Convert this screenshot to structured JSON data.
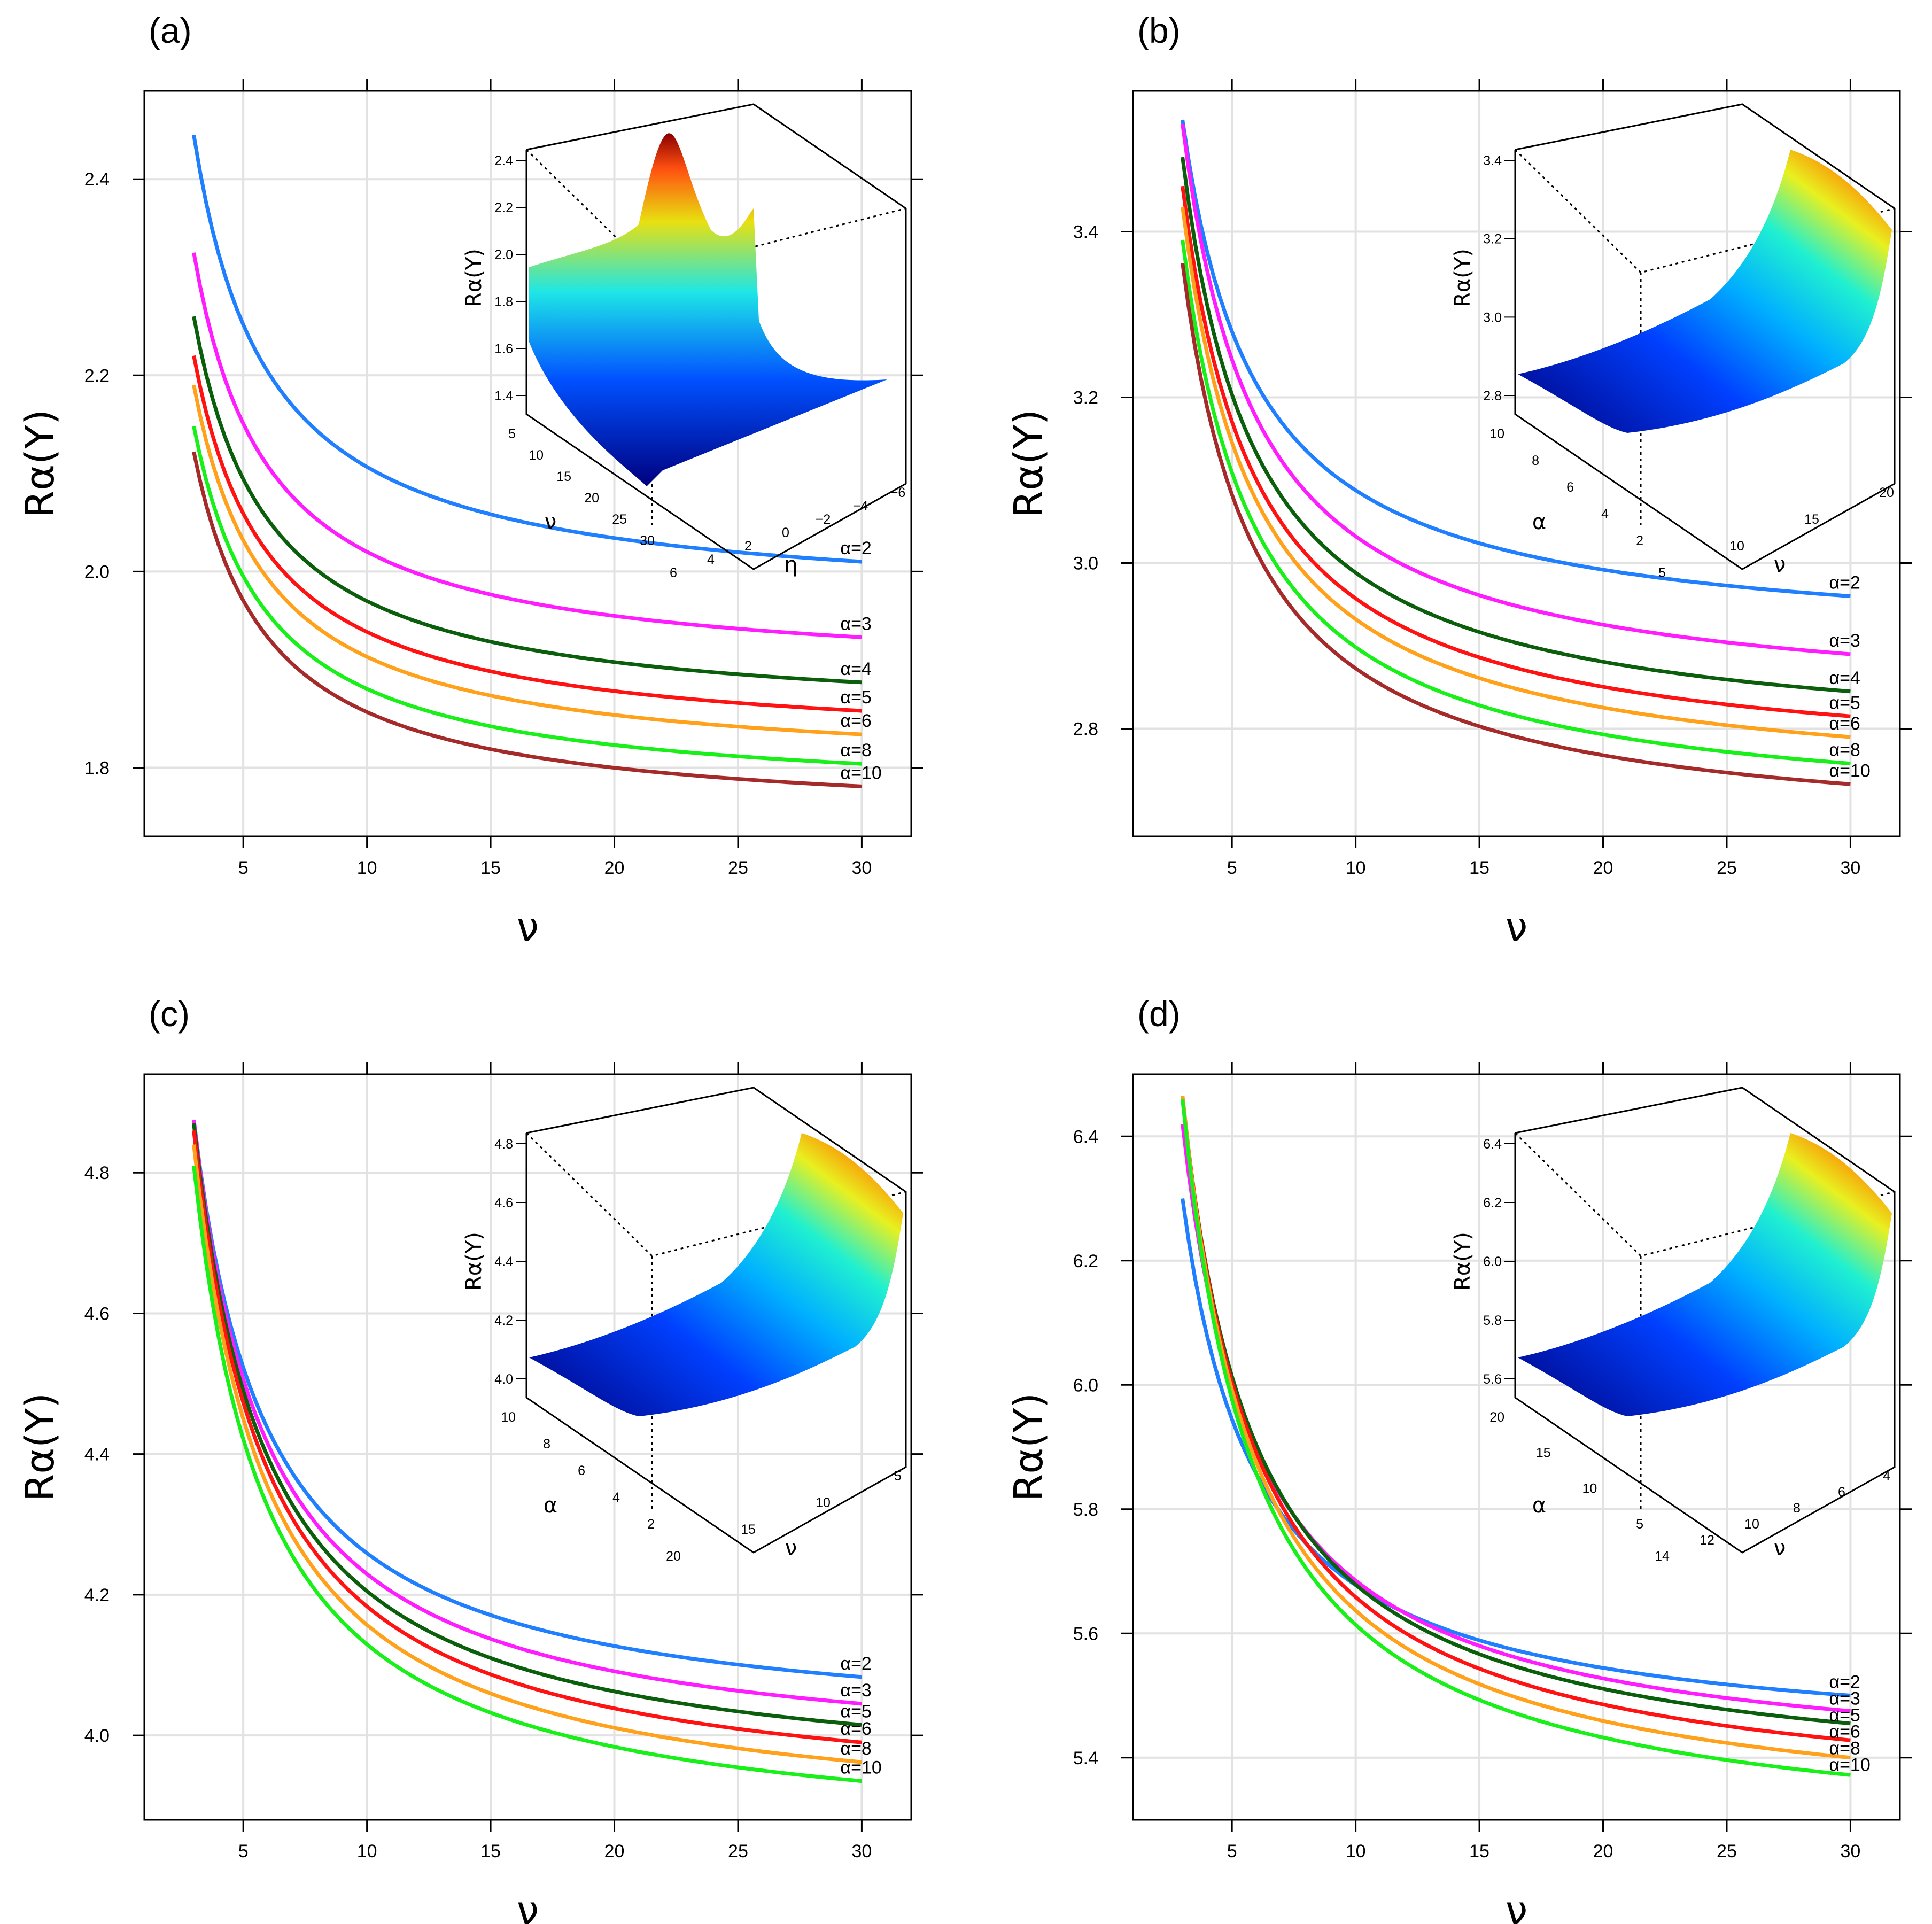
{
  "chart_data": [
    {
      "panel": "(a)",
      "type": "line",
      "xlabel": "ν",
      "ylabel": "Rα(Y)",
      "xlim": [
        1,
        32
      ],
      "ylim": [
        1.73,
        2.49
      ],
      "xticks": [
        5,
        10,
        15,
        20,
        25,
        30
      ],
      "yticks": [
        1.8,
        2.0,
        2.2,
        2.4
      ],
      "ytick_labels": [
        "1.8",
        "2.0",
        "2.2",
        "2.4"
      ],
      "series": [
        {
          "name": "α=2",
          "color": "#1f7fff",
          "start": 2.445,
          "end": 2.01
        },
        {
          "name": "α=3",
          "color": "#ff1cff",
          "start": 2.325,
          "end": 1.933
        },
        {
          "name": "α=4",
          "color": "#0b5e0b",
          "start": 2.26,
          "end": 1.887
        },
        {
          "name": "α=5",
          "color": "#ff1212",
          "start": 2.22,
          "end": 1.858
        },
        {
          "name": "α=6",
          "color": "#ffa11a",
          "start": 2.19,
          "end": 1.834
        },
        {
          "name": "α=8",
          "color": "#19f019",
          "start": 2.148,
          "end": 1.804
        },
        {
          "name": "α=10",
          "color": "#a52a2a",
          "start": 2.122,
          "end": 1.781
        }
      ],
      "inset": {
        "zlabel": "Rα(Y)",
        "ylabel": "η",
        "xlabel": "ν",
        "zticks": [
          "2.4",
          "2.2",
          "2.0",
          "1.8",
          "1.6",
          "1.4"
        ],
        "xticks": [
          "5",
          "10",
          "15",
          "20",
          "25",
          "30"
        ],
        "yticks": [
          "6",
          "4",
          "2",
          "0",
          "−2",
          "−4",
          "−6"
        ]
      }
    },
    {
      "panel": "(b)",
      "type": "line",
      "xlabel": "ν",
      "ylabel": "Rα(Y)",
      "xlim": [
        1,
        32
      ],
      "ylim": [
        2.67,
        3.57
      ],
      "xticks": [
        5,
        10,
        15,
        20,
        25,
        30
      ],
      "yticks": [
        2.8,
        3.0,
        3.2,
        3.4
      ],
      "ytick_labels": [
        "2.8",
        "3.0",
        "3.2",
        "3.4"
      ],
      "series": [
        {
          "name": "α=2",
          "color": "#1f7fff",
          "start": 3.535,
          "end": 2.96
        },
        {
          "name": "α=3",
          "color": "#ff1cff",
          "start": 3.53,
          "end": 2.89
        },
        {
          "name": "α=4",
          "color": "#0b5e0b",
          "start": 3.49,
          "end": 2.845
        },
        {
          "name": "α=5",
          "color": "#ff1212",
          "start": 3.455,
          "end": 2.815
        },
        {
          "name": "α=6",
          "color": "#ffa11a",
          "start": 3.43,
          "end": 2.79
        },
        {
          "name": "α=8",
          "color": "#19f019",
          "start": 3.39,
          "end": 2.758
        },
        {
          "name": "α=10",
          "color": "#a52a2a",
          "start": 3.362,
          "end": 2.733
        }
      ],
      "inset": {
        "zlabel": "Rα(Y)",
        "xlabel": "α",
        "ylabel": "ν",
        "zticks": [
          "3.4",
          "3.2",
          "3.0",
          "2.8"
        ],
        "xticks": [
          "10",
          "8",
          "6",
          "4",
          "2"
        ],
        "yticks": [
          "5",
          "10",
          "15",
          "20"
        ]
      }
    },
    {
      "panel": "(c)",
      "type": "line",
      "xlabel": "ν",
      "ylabel": "Rα(Y)",
      "xlim": [
        1,
        32
      ],
      "ylim": [
        3.88,
        4.94
      ],
      "xticks": [
        5,
        10,
        15,
        20,
        25,
        30
      ],
      "yticks": [
        4.0,
        4.2,
        4.4,
        4.6,
        4.8
      ],
      "ytick_labels": [
        "4.0",
        "4.2",
        "4.4",
        "4.6",
        "4.8"
      ],
      "series": [
        {
          "name": "α=2",
          "color": "#1f7fff",
          "start": 4.875,
          "end": 4.083
        },
        {
          "name": "α=3",
          "color": "#ff1cff",
          "start": 4.875,
          "end": 4.045
        },
        {
          "name": "α=5",
          "color": "#0b5e0b",
          "start": 4.87,
          "end": 4.015
        },
        {
          "name": "α=6",
          "color": "#ff1212",
          "start": 4.86,
          "end": 3.99
        },
        {
          "name": "α=8",
          "color": "#ffa11a",
          "start": 4.84,
          "end": 3.962
        },
        {
          "name": "α=10",
          "color": "#19f019",
          "start": 4.81,
          "end": 3.935
        }
      ],
      "inset": {
        "zlabel": "Rα(Y)",
        "xlabel": "α",
        "ylabel": "ν",
        "zticks": [
          "4.8",
          "4.6",
          "4.4",
          "4.2",
          "4.0"
        ],
        "xticks": [
          "10",
          "8",
          "6",
          "4",
          "2"
        ],
        "yticks": [
          "20",
          "15",
          "10",
          "5"
        ]
      }
    },
    {
      "panel": "(d)",
      "type": "line",
      "xlabel": "ν",
      "ylabel": "Rα(Y)",
      "xlim": [
        1,
        32
      ],
      "ylim": [
        5.3,
        6.5
      ],
      "xticks": [
        5,
        10,
        15,
        20,
        25,
        30
      ],
      "yticks": [
        5.4,
        5.6,
        5.8,
        6.0,
        6.2,
        6.4
      ],
      "ytick_labels": [
        "5.4",
        "5.6",
        "5.8",
        "6.0",
        "6.2",
        "6.4"
      ],
      "series": [
        {
          "name": "α=2",
          "color": "#1f7fff",
          "start": 6.3,
          "end": 5.5
        },
        {
          "name": "α=3",
          "color": "#ff1cff",
          "start": 6.42,
          "end": 5.475
        },
        {
          "name": "α=5",
          "color": "#0b5e0b",
          "start": 6.46,
          "end": 5.455
        },
        {
          "name": "α=6",
          "color": "#ff1212",
          "start": 6.465,
          "end": 5.428
        },
        {
          "name": "α=8",
          "color": "#ffa11a",
          "start": 6.465,
          "end": 5.4
        },
        {
          "name": "α=10",
          "color": "#19f019",
          "start": 6.46,
          "end": 5.372
        }
      ],
      "inset": {
        "zlabel": "Rα(Y)",
        "xlabel": "α",
        "ylabel": "ν",
        "zticks": [
          "6.4",
          "6.2",
          "6.0",
          "5.8",
          "5.6"
        ],
        "xticks": [
          "20",
          "15",
          "10",
          "5"
        ],
        "yticks": [
          "14",
          "12",
          "10",
          "8",
          "6",
          "4"
        ]
      }
    }
  ]
}
